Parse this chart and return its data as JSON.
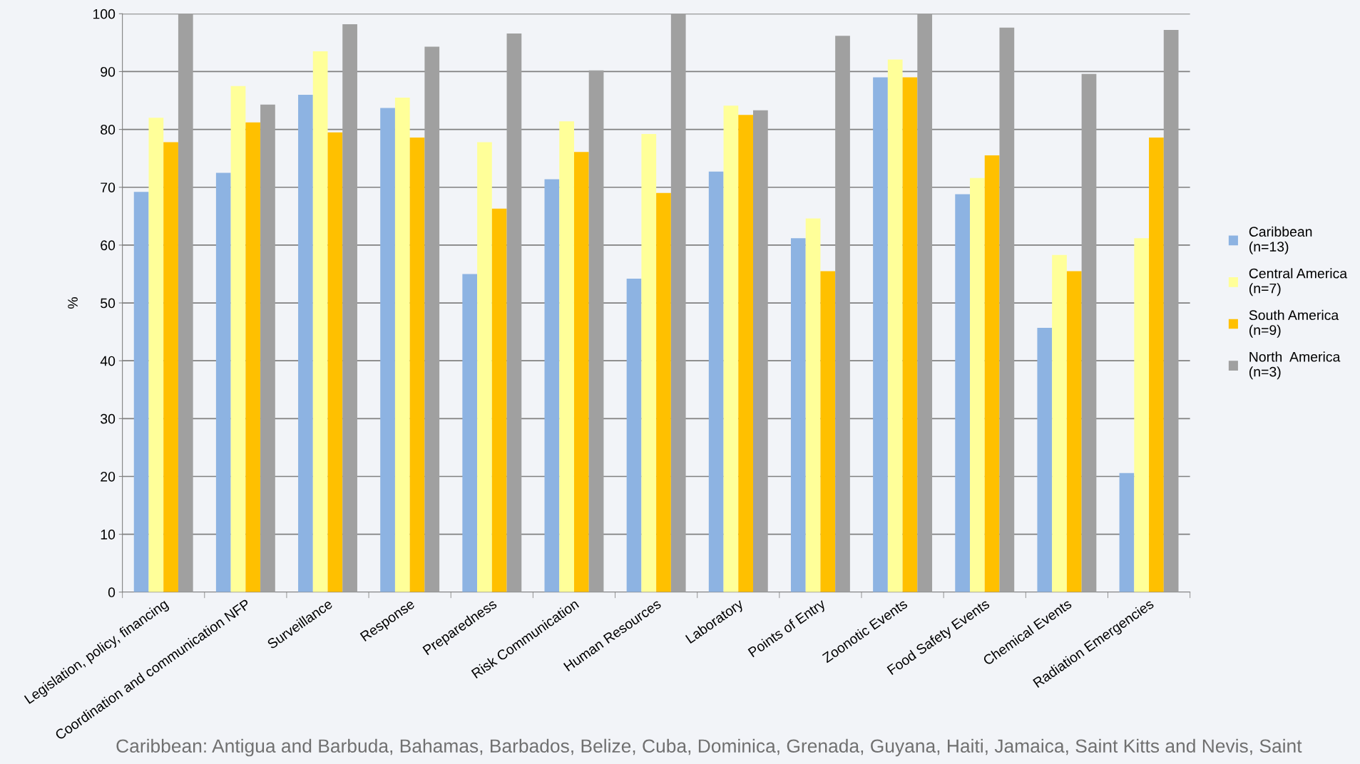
{
  "chart_data": {
    "type": "bar",
    "ylabel": "%",
    "categories": [
      "Legislation, policy, financing",
      "Coordination and communication NFP",
      "Surveillance",
      "Response",
      "Preparedness",
      "Risk Communication",
      "Human Resources",
      "Laboratory",
      "Points of Entry",
      "Zoonotic Events",
      "Food Safety Events",
      "Chemical Events",
      "Radiation Emergencies"
    ],
    "series": [
      {
        "name": "Caribbean\n(n=13)",
        "color": "#8db3e2",
        "values": [
          69.2,
          72.5,
          86,
          83.7,
          55,
          71.4,
          54.2,
          72.7,
          61.2,
          89,
          68.8,
          45.7,
          20.6
        ]
      },
      {
        "name": "Central America\n(n=7)",
        "color": "#ffff99",
        "values": [
          82,
          87.5,
          93.5,
          85.5,
          77.8,
          81.4,
          79.2,
          84.1,
          64.6,
          92.1,
          71.6,
          58.3,
          61.2
        ]
      },
      {
        "name": "South America\n(n=9)",
        "color": "#ffc000",
        "values": [
          77.8,
          81.2,
          79.5,
          78.6,
          66.3,
          76.1,
          69,
          82.5,
          55.5,
          89,
          75.5,
          55.5,
          78.6
        ]
      },
      {
        "name": "North  America\n(n=3)",
        "color": "#a0a0a0",
        "values": [
          100,
          84.3,
          98.2,
          94.3,
          96.6,
          90.2,
          100,
          83.3,
          96.2,
          100,
          97.6,
          89.6,
          97.2
        ]
      }
    ],
    "ylim": [
      0,
      100
    ],
    "yticks": [
      0,
      10,
      20,
      30,
      40,
      50,
      60,
      70,
      80,
      90,
      100
    ],
    "grid": "y",
    "legend": "right",
    "annotations": [
      "Caribbean: Antigua and Barbuda, Bahamas, Barbados, Belize, Cuba, Dominica, Grenada, Guyana, Haiti, Jamaica, Saint Kitts and Nevis, Saint"
    ]
  }
}
